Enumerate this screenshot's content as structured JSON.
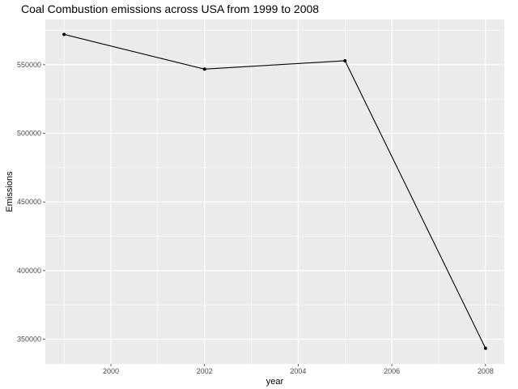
{
  "chart_data": {
    "type": "line",
    "title": "Coal Combustion emissions across USA from 1999 to 2008",
    "xlabel": "year",
    "ylabel": "Emissions",
    "x": [
      1999,
      2002,
      2005,
      2008
    ],
    "series": [
      {
        "values": [
          572100,
          546800,
          552900,
          343400
        ]
      }
    ],
    "xlim": [
      1998.6,
      2008.4
    ],
    "ylim": [
      332000,
      583000
    ],
    "x_ticks": [
      2000,
      2002,
      2004,
      2006,
      2008
    ],
    "y_ticks": [
      350000,
      400000,
      450000,
      500000,
      550000
    ],
    "x_tick_labels": [
      "2000",
      "2002",
      "2004",
      "2006",
      "2008"
    ],
    "y_tick_labels": [
      "350000",
      "400000",
      "450000",
      "500000",
      "550000"
    ],
    "grid": true,
    "colors": {
      "panel": "#ebebeb",
      "grid": "#ffffff",
      "line": "#000000"
    }
  }
}
